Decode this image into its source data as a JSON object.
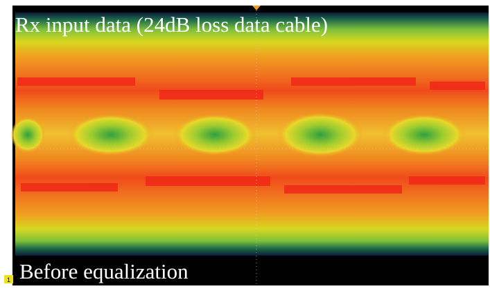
{
  "title": "Rx input data (24dB loss data cable)",
  "caption": "Before equalization",
  "channel_marker": "1"
}
